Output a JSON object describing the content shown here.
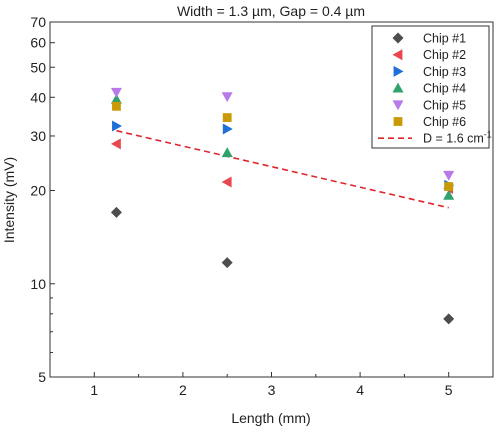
{
  "chart_data": {
    "type": "scatter",
    "title": "Width = 1.3 µm, Gap = 0.4 µm",
    "xlabel": "Length (mm)",
    "ylabel": "Intensity (mV)",
    "xlim": [
      0.5,
      5.5
    ],
    "ylim": [
      5,
      70
    ],
    "yscale": "log",
    "x_ticks": [
      "1",
      "2",
      "3",
      "4",
      "5"
    ],
    "y_ticks": [
      "5",
      "10",
      "20",
      "30",
      "40",
      "50",
      "60",
      "70"
    ],
    "legend_position": "top-right",
    "series": [
      {
        "name": "Chip #1",
        "marker": "diamond",
        "color": "#4d4d4d",
        "x": [
          1.25,
          2.5,
          5.0
        ],
        "y": [
          17.0,
          11.7,
          7.7
        ]
      },
      {
        "name": "Chip #2",
        "marker": "triangle-left",
        "color": "#e8474f",
        "x": [
          1.25,
          2.5,
          5.0
        ],
        "y": [
          28.3,
          21.3,
          20.3
        ]
      },
      {
        "name": "Chip #3",
        "marker": "triangle-right",
        "color": "#1f6fd8",
        "x": [
          1.25,
          2.5,
          5.0
        ],
        "y": [
          32.3,
          31.6,
          20.8
        ]
      },
      {
        "name": "Chip #4",
        "marker": "triangle-up",
        "color": "#2fa36b",
        "x": [
          1.25,
          2.5,
          5.0
        ],
        "y": [
          39.4,
          26.5,
          19.3
        ]
      },
      {
        "name": "Chip #5",
        "marker": "triangle-down",
        "color": "#b77ae8",
        "x": [
          1.25,
          2.5,
          5.0
        ],
        "y": [
          41.5,
          40.2,
          22.4
        ]
      },
      {
        "name": "Chip #6",
        "marker": "square",
        "color": "#c99a06",
        "x": [
          1.25,
          2.5,
          5.0
        ],
        "y": [
          37.4,
          34.4,
          20.6
        ]
      }
    ],
    "fit": {
      "name": "D = 1.6 cm",
      "name_sup": "-1",
      "style": "dashed",
      "color": "#e0262c",
      "x": [
        1.25,
        5.0
      ],
      "y": [
        31.2,
        17.6
      ]
    }
  }
}
